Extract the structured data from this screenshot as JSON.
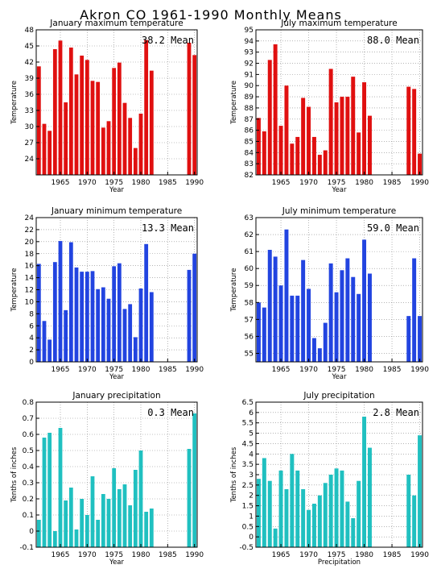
{
  "title": "Akron CO   1961-1990 Monthly Means",
  "chart_data": [
    {
      "type": "bar",
      "title": "January maximum temperature",
      "xlabel": "Year",
      "ylabel": "Temperature",
      "mean_label": "38.2 Mean",
      "color": "#e01010",
      "xlim": [
        1960.5,
        1990.5
      ],
      "ylim": [
        21,
        48
      ],
      "yticks": [
        "24",
        "27",
        "30",
        "33",
        "36",
        "39",
        "42",
        "45",
        "48"
      ],
      "xticks": [
        "1965",
        "1970",
        "1975",
        "1980",
        "1985",
        "1990"
      ],
      "x": [
        1961,
        1962,
        1963,
        1964,
        1965,
        1966,
        1967,
        1968,
        1969,
        1970,
        1971,
        1972,
        1973,
        1974,
        1975,
        1976,
        1977,
        1978,
        1979,
        1980,
        1981,
        1982,
        1983,
        1984,
        1985,
        1986,
        1987,
        1988,
        1989,
        1990
      ],
      "values": [
        41.2,
        30.5,
        29.2,
        44.4,
        46.0,
        34.5,
        44.7,
        39.7,
        43.2,
        42.4,
        38.5,
        38.3,
        29.8,
        31.0,
        40.9,
        41.9,
        34.4,
        31.6,
        26.0,
        32.4,
        46.1,
        40.4,
        null,
        null,
        null,
        null,
        null,
        null,
        45.6,
        43.3
      ]
    },
    {
      "type": "bar",
      "title": "July maximum temperature",
      "xlabel": "Year",
      "ylabel": "Temperature",
      "mean_label": "88.0 Mean",
      "color": "#e01010",
      "xlim": [
        1960.5,
        1990.5
      ],
      "ylim": [
        82,
        95
      ],
      "yticks": [
        "82",
        "83",
        "84",
        "85",
        "86",
        "87",
        "88",
        "89",
        "90",
        "91",
        "92",
        "93",
        "94",
        "95"
      ],
      "xticks": [
        "1965",
        "1970",
        "1975",
        "1980",
        "1985",
        "1990"
      ],
      "x": [
        1961,
        1962,
        1963,
        1964,
        1965,
        1966,
        1967,
        1968,
        1969,
        1970,
        1971,
        1972,
        1973,
        1974,
        1975,
        1976,
        1977,
        1978,
        1979,
        1980,
        1981,
        1982,
        1983,
        1984,
        1985,
        1986,
        1987,
        1988,
        1989,
        1990
      ],
      "values": [
        87.1,
        85.9,
        92.3,
        93.7,
        86.4,
        90.0,
        84.8,
        85.4,
        88.9,
        88.1,
        85.4,
        83.8,
        84.2,
        91.5,
        88.5,
        89.0,
        89.0,
        90.8,
        85.8,
        90.3,
        87.3,
        null,
        null,
        null,
        null,
        null,
        null,
        89.9,
        89.7,
        83.9
      ]
    },
    {
      "type": "bar",
      "title": "January minimum temperature",
      "xlabel": "Year",
      "ylabel": "Temperature",
      "mean_label": "13.3 Mean",
      "color": "#2244e0",
      "xlim": [
        1960.5,
        1990.5
      ],
      "ylim": [
        0,
        24
      ],
      "yticks": [
        "0",
        "2",
        "4",
        "6",
        "8",
        "10",
        "12",
        "14",
        "16",
        "18",
        "20",
        "22",
        "24"
      ],
      "xticks": [
        "1965",
        "1970",
        "1975",
        "1980",
        "1985",
        "1990"
      ],
      "x": [
        1961,
        1962,
        1963,
        1964,
        1965,
        1966,
        1967,
        1968,
        1969,
        1970,
        1971,
        1972,
        1973,
        1974,
        1975,
        1976,
        1977,
        1978,
        1979,
        1980,
        1981,
        1982,
        1983,
        1984,
        1985,
        1986,
        1987,
        1988,
        1989,
        1990
      ],
      "values": [
        16.3,
        6.8,
        3.7,
        16.6,
        20.1,
        8.6,
        19.9,
        15.7,
        15.0,
        15.0,
        15.1,
        12.1,
        12.4,
        10.5,
        15.9,
        16.4,
        8.8,
        9.6,
        4.1,
        12.2,
        19.6,
        11.6,
        null,
        null,
        null,
        null,
        null,
        null,
        15.3,
        18.0
      ]
    },
    {
      "type": "bar",
      "title": "July minimum temperature",
      "xlabel": "Year",
      "ylabel": "Temperature",
      "mean_label": "59.0 Mean",
      "color": "#2244e0",
      "xlim": [
        1960.5,
        1990.5
      ],
      "ylim": [
        54.5,
        63
      ],
      "yticks": [
        "55",
        "56",
        "57",
        "58",
        "59",
        "60",
        "61",
        "62",
        "63"
      ],
      "xticks": [
        "1965",
        "1970",
        "1975",
        "1980",
        "1985",
        "1990"
      ],
      "x": [
        1961,
        1962,
        1963,
        1964,
        1965,
        1966,
        1967,
        1968,
        1969,
        1970,
        1971,
        1972,
        1973,
        1974,
        1975,
        1976,
        1977,
        1978,
        1979,
        1980,
        1981,
        1982,
        1983,
        1984,
        1985,
        1986,
        1987,
        1988,
        1989,
        1990
      ],
      "values": [
        58.0,
        57.7,
        61.1,
        60.7,
        59.0,
        62.3,
        58.4,
        58.4,
        60.5,
        58.8,
        55.9,
        55.3,
        56.8,
        60.3,
        58.6,
        59.9,
        60.6,
        59.5,
        58.5,
        61.7,
        59.7,
        null,
        null,
        null,
        null,
        null,
        null,
        57.2,
        60.6,
        57.2
      ]
    },
    {
      "type": "bar",
      "title": "January precipitation",
      "xlabel": "Year",
      "ylabel": "Tenths of inches",
      "mean_label": "0.3 Mean",
      "color": "#20c0c0",
      "xlim": [
        1960.5,
        1990.5
      ],
      "ylim": [
        -0.1,
        0.8
      ],
      "yticks": [
        "-0.1",
        "0",
        "0.1",
        "0.2",
        "0.3",
        "0.4",
        "0.5",
        "0.6",
        "0.7",
        "0.8"
      ],
      "xticks": [
        "1965",
        "1970",
        "1975",
        "1980",
        "1985",
        "1990"
      ],
      "x": [
        1961,
        1962,
        1963,
        1964,
        1965,
        1966,
        1967,
        1968,
        1969,
        1970,
        1971,
        1972,
        1973,
        1974,
        1975,
        1976,
        1977,
        1978,
        1979,
        1980,
        1981,
        1982,
        1983,
        1984,
        1985,
        1986,
        1987,
        1988,
        1989,
        1990
      ],
      "values": [
        0.07,
        0.58,
        0.61,
        0.0,
        0.64,
        0.19,
        0.27,
        0.01,
        0.2,
        0.1,
        0.34,
        0.07,
        0.23,
        0.2,
        0.39,
        0.26,
        0.29,
        0.16,
        0.38,
        0.5,
        0.12,
        0.14,
        null,
        null,
        null,
        null,
        null,
        null,
        0.51,
        0.73
      ]
    },
    {
      "type": "bar",
      "title": "July precipitation",
      "xlabel": "Precipitation",
      "ylabel": "Tenths of inches",
      "mean_label": "2.8 Mean",
      "color": "#20c0c0",
      "xlim": [
        1960.5,
        1990.5
      ],
      "ylim": [
        -0.5,
        6.5
      ],
      "yticks": [
        "-0.5",
        "0",
        "0.5",
        "1",
        "1.5",
        "2",
        "2.5",
        "3",
        "3.5",
        "4",
        "4.5",
        "5",
        "5.5",
        "6",
        "6.5"
      ],
      "xticks": [
        "1965",
        "1970",
        "1975",
        "1980",
        "1985",
        "1990"
      ],
      "x": [
        1961,
        1962,
        1963,
        1964,
        1965,
        1966,
        1967,
        1968,
        1969,
        1970,
        1971,
        1972,
        1973,
        1974,
        1975,
        1976,
        1977,
        1978,
        1979,
        1980,
        1981,
        1982,
        1983,
        1984,
        1985,
        1986,
        1987,
        1988,
        1989,
        1990
      ],
      "values": [
        2.8,
        3.8,
        2.7,
        0.4,
        3.2,
        2.3,
        4.0,
        3.2,
        2.3,
        1.3,
        1.6,
        2.0,
        2.6,
        3.0,
        3.3,
        3.2,
        1.7,
        0.9,
        2.7,
        5.8,
        4.3,
        null,
        null,
        null,
        null,
        null,
        null,
        3.0,
        2.0,
        4.9
      ]
    }
  ]
}
